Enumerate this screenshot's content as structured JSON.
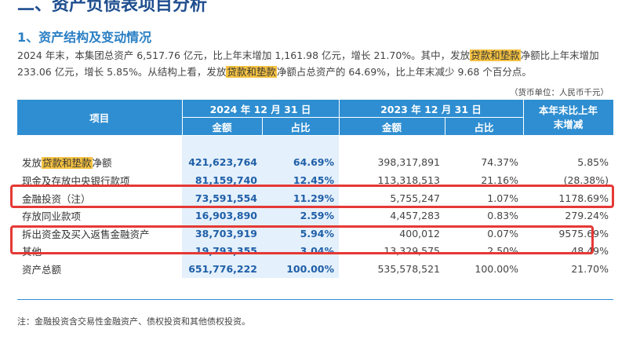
{
  "section_title": "二、资产负债表项目分析",
  "sub_title": "1、资产结构及变动情况",
  "paragraph": {
    "p1": "2024 年末，本集团总资产 6,517.76 亿元，比上年末增加 1,161.98 亿元，增长 21.70%。其中，发放",
    "hl": "贷款和垫款",
    "p2": "净额比上年末增加 233.06 亿元，增长 5.85%。从结构上看，发放",
    "p3": "净额占总资产的 64.69%，比上年末减少 9.68 个百分点。"
  },
  "unit": "（货币单位：人民币千元）",
  "table": {
    "header": {
      "item": "项目",
      "cur_period": "2024 年 12 月 31 日",
      "prev_period": "2023 年 12 月 31 日",
      "change": "本年末比上年末增减",
      "amount": "金额",
      "ratio": "占比"
    },
    "rows": [
      {
        "pre": "发放",
        "hl": "贷款和垫款",
        "post": "净额",
        "cur_amount": "421,623,764",
        "cur_ratio": "64.69%",
        "prev_amount": "398,317,891",
        "prev_ratio": "74.37%",
        "change": "5.85%"
      },
      {
        "pre": "现金及存放中央银行款项",
        "hl": "",
        "post": "",
        "cur_amount": "81,159,740",
        "cur_ratio": "12.45%",
        "prev_amount": "113,318,513",
        "prev_ratio": "21.16%",
        "change": "(28.38%)"
      },
      {
        "pre": "金融投资（注）",
        "hl": "",
        "post": "",
        "cur_amount": "73,591,554",
        "cur_ratio": "11.29%",
        "prev_amount": "5,755,247",
        "prev_ratio": "1.07%",
        "change": "1178.69%"
      },
      {
        "pre": "存放同业款项",
        "hl": "",
        "post": "",
        "cur_amount": "16,903,890",
        "cur_ratio": "2.59%",
        "prev_amount": "4,457,283",
        "prev_ratio": "0.83%",
        "change": "279.24%"
      },
      {
        "pre": "拆出资金及买入返售金融资产",
        "hl": "",
        "post": "",
        "cur_amount": "38,703,919",
        "cur_ratio": "5.94%",
        "prev_amount": "400,012",
        "prev_ratio": "0.07%",
        "change": "9575.69%"
      },
      {
        "pre": "其他",
        "hl": "",
        "post": "",
        "cur_amount": "19,793,355",
        "cur_ratio": "3.04%",
        "prev_amount": "13,329,575",
        "prev_ratio": "2.50%",
        "change": "48.49%"
      },
      {
        "pre": "资产总额",
        "hl": "",
        "post": "",
        "cur_amount": "651,776,222",
        "cur_ratio": "100.00%",
        "prev_amount": "535,578,521",
        "prev_ratio": "100.00%",
        "change": "21.70%"
      }
    ]
  },
  "note": "注：金融投资含交易性金融资产、债权投资和其他债权投资。",
  "colors": {
    "header_bg": "#2f8ed1",
    "current_col_bg": "#e4f0fb",
    "highlight": "#f5c242",
    "annotation_box": "#e53935"
  }
}
